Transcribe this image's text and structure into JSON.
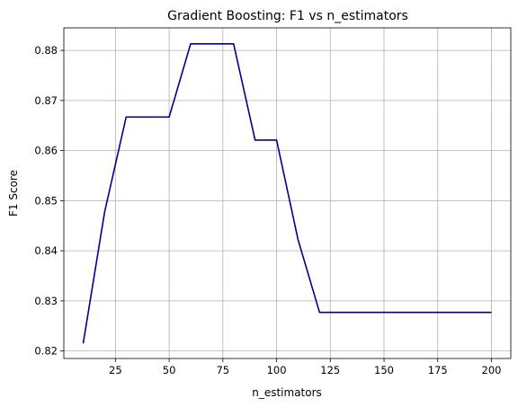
{
  "chart_data": {
    "type": "line",
    "title": "Gradient Boosting: F1 vs n_estimators",
    "xlabel": "n_estimators",
    "ylabel": "F1 Score",
    "xlim": [
      1,
      209
    ],
    "ylim": [
      0.8185,
      0.8845
    ],
    "grid": true,
    "x_ticks": [
      25,
      50,
      75,
      100,
      125,
      150,
      175,
      200
    ],
    "y_ticks": [
      0.82,
      0.83,
      0.84,
      0.85,
      0.86,
      0.87,
      0.88
    ],
    "x_tick_labels": [
      "25",
      "50",
      "75",
      "100",
      "125",
      "150",
      "175",
      "200"
    ],
    "y_tick_labels": [
      "0.82",
      "0.83",
      "0.84",
      "0.85",
      "0.86",
      "0.87",
      "0.88"
    ],
    "series": [
      {
        "color": "#00008b",
        "x": [
          10,
          20,
          30,
          40,
          50,
          60,
          70,
          80,
          90,
          100,
          110,
          120,
          130,
          140,
          150,
          160,
          170,
          180,
          190,
          200
        ],
        "y": [
          0.8215,
          0.8478,
          0.8667,
          0.8667,
          0.8667,
          0.8813,
          0.8813,
          0.8813,
          0.8621,
          0.8621,
          0.8422,
          0.8277,
          0.8277,
          0.8277,
          0.8277,
          0.8277,
          0.8277,
          0.8277,
          0.8277,
          0.8277
        ]
      }
    ]
  }
}
